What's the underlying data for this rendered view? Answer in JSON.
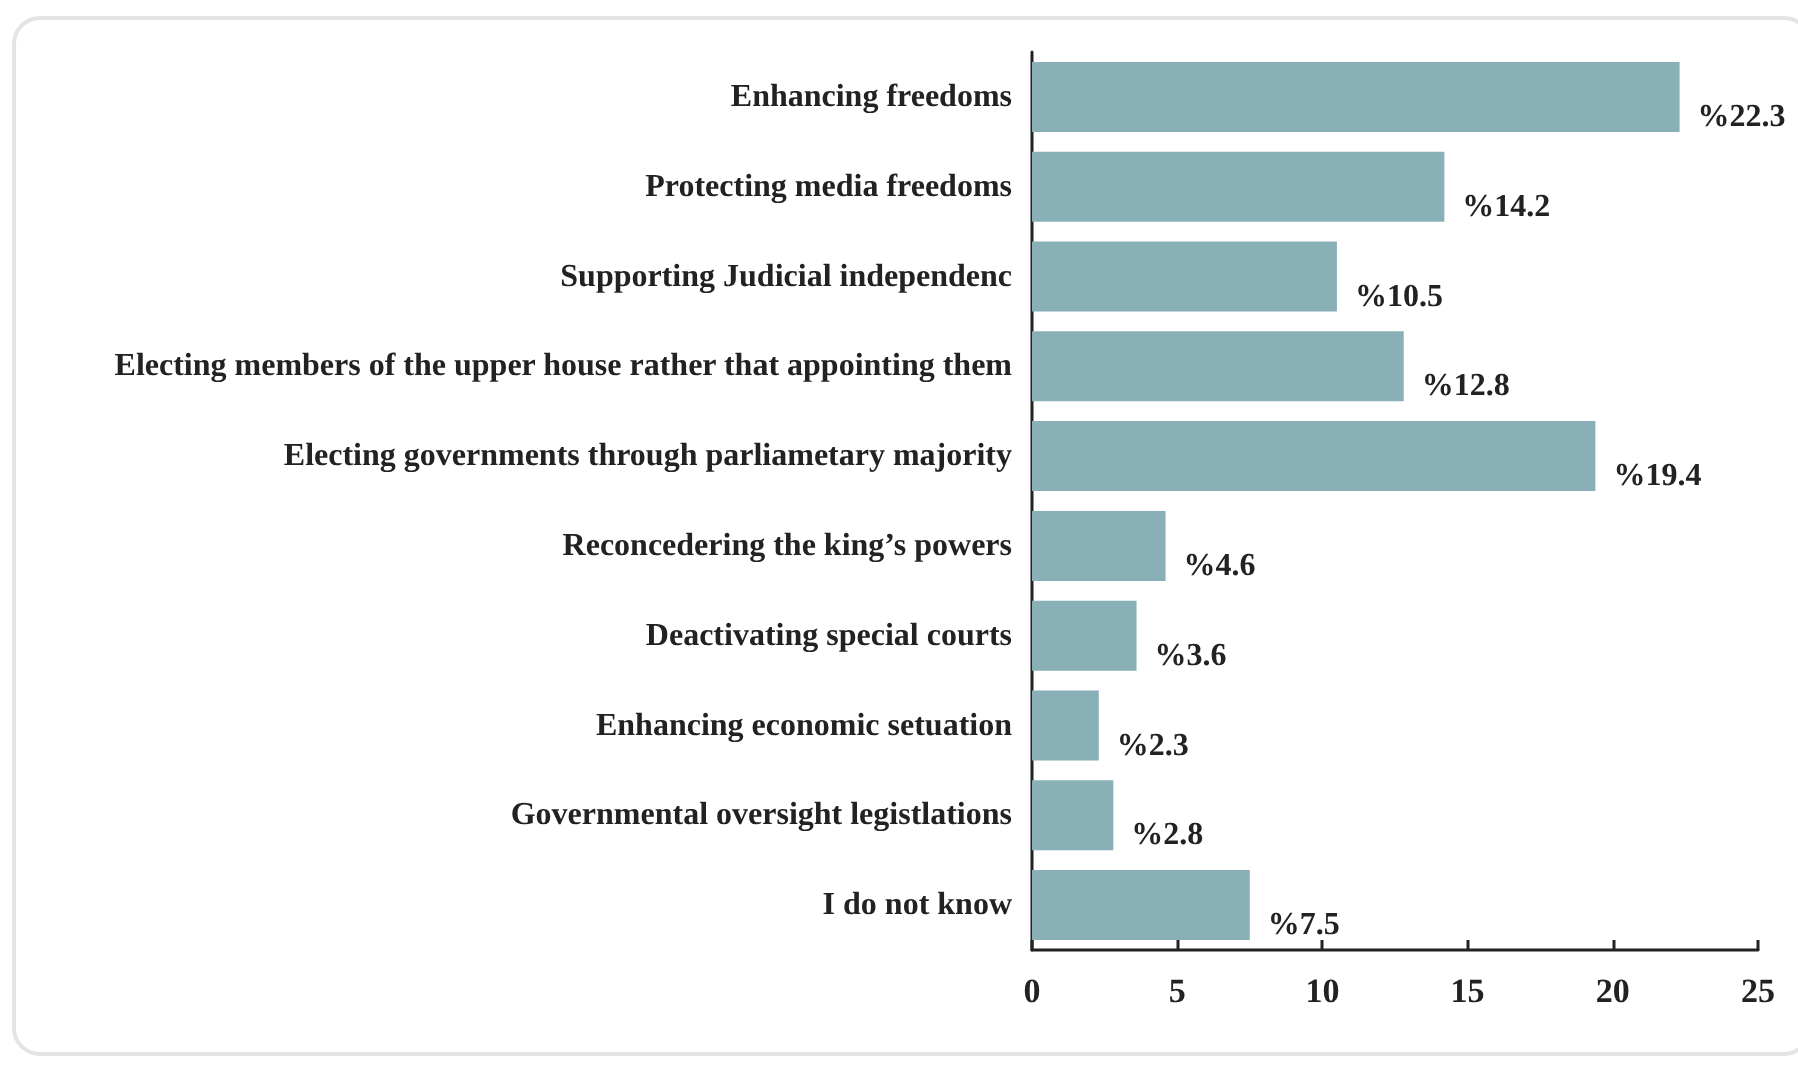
{
  "chart_data": {
    "type": "bar",
    "orientation": "horizontal",
    "categories": [
      "Enhancing freedoms",
      "Protecting media freedoms",
      "Supporting Judicial independenc",
      "Electing members of the upper house rather that appointing them",
      "Electing governments through parliametary majority",
      "Reconcedering the king’s powers",
      "Deactivating special courts",
      "Enhancing economic setuation",
      "Governmental oversight legistlations",
      "I do not know"
    ],
    "values": [
      22.3,
      14.2,
      10.5,
      12.8,
      19.4,
      4.6,
      3.6,
      2.3,
      2.8,
      7.5
    ],
    "value_labels": [
      "%22.3",
      "%14.2",
      "%10.5",
      "%12.8",
      "%19.4",
      "%4.6",
      "%3.6",
      "%2.3",
      "%2.8",
      "%7.5"
    ],
    "color": "#88b0b6",
    "xlim": [
      0,
      25
    ],
    "xticks": [
      0,
      5,
      10,
      15,
      20,
      25
    ],
    "grid": false
  }
}
